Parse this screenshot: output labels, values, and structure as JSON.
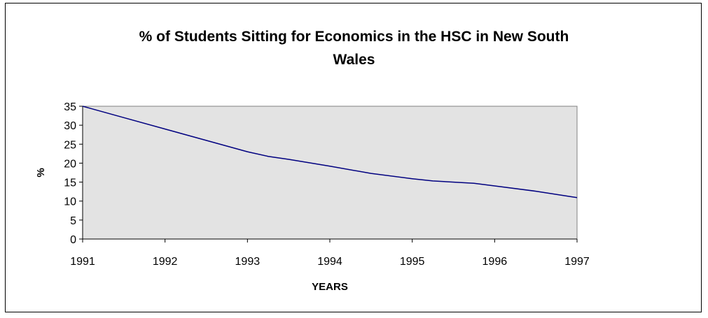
{
  "chart_data": {
    "type": "line",
    "title_lines": [
      "% of Students Sitting for Economics in the HSC in New South",
      "Wales"
    ],
    "xlabel": "YEARS",
    "ylabel": "%",
    "x_ticks": [
      "1991",
      "1992",
      "1993",
      "1994",
      "1995",
      "1996",
      "1997"
    ],
    "xlim": [
      1991,
      1997
    ],
    "ylim": [
      0,
      35
    ],
    "y_ticks": [
      0,
      5,
      10,
      15,
      20,
      25,
      30,
      35
    ],
    "grid": false,
    "legend": "none",
    "series": [
      {
        "x": [
          1991,
          1991.5,
          1992,
          1992.5,
          1993,
          1993.25,
          1993.5,
          1994,
          1994.5,
          1995,
          1995.25,
          1995.75,
          1996,
          1996.5,
          1997
        ],
        "values": [
          35,
          32,
          29,
          26,
          23,
          21.8,
          21,
          19.2,
          17.3,
          15.9,
          15.3,
          14.7,
          14,
          12.6,
          10.9
        ]
      }
    ],
    "colors": {
      "line": "#000080",
      "plot_background": "#e3e3e3"
    }
  }
}
